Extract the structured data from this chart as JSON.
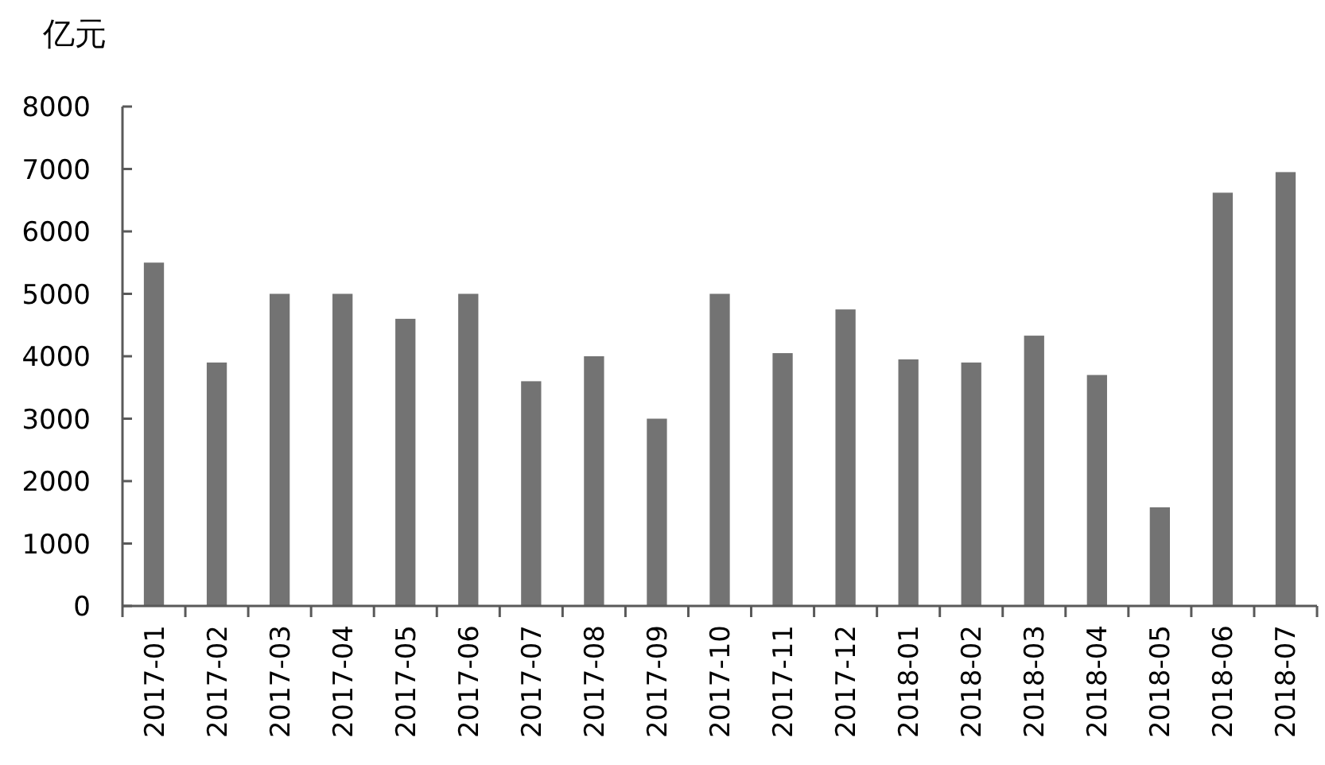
{
  "chart_data": {
    "type": "bar",
    "ylabel": "亿元",
    "categories": [
      "2017-01",
      "2017-02",
      "2017-03",
      "2017-04",
      "2017-05",
      "2017-06",
      "2017-07",
      "2017-08",
      "2017-09",
      "2017-10",
      "2017-11",
      "2017-12",
      "2018-01",
      "2018-02",
      "2018-03",
      "2018-04",
      "2018-05",
      "2018-06",
      "2018-07"
    ],
    "values": [
      5500,
      3900,
      5000,
      5000,
      4600,
      5000,
      3600,
      4000,
      3000,
      5000,
      4050,
      4750,
      3950,
      3900,
      4330,
      3700,
      1580,
      6620,
      6950
    ],
    "color": "#737373",
    "ylim": [
      0,
      8000
    ],
    "yticks": [
      0,
      1000,
      2000,
      3000,
      4000,
      5000,
      6000,
      7000,
      8000
    ],
    "grid": false
  }
}
